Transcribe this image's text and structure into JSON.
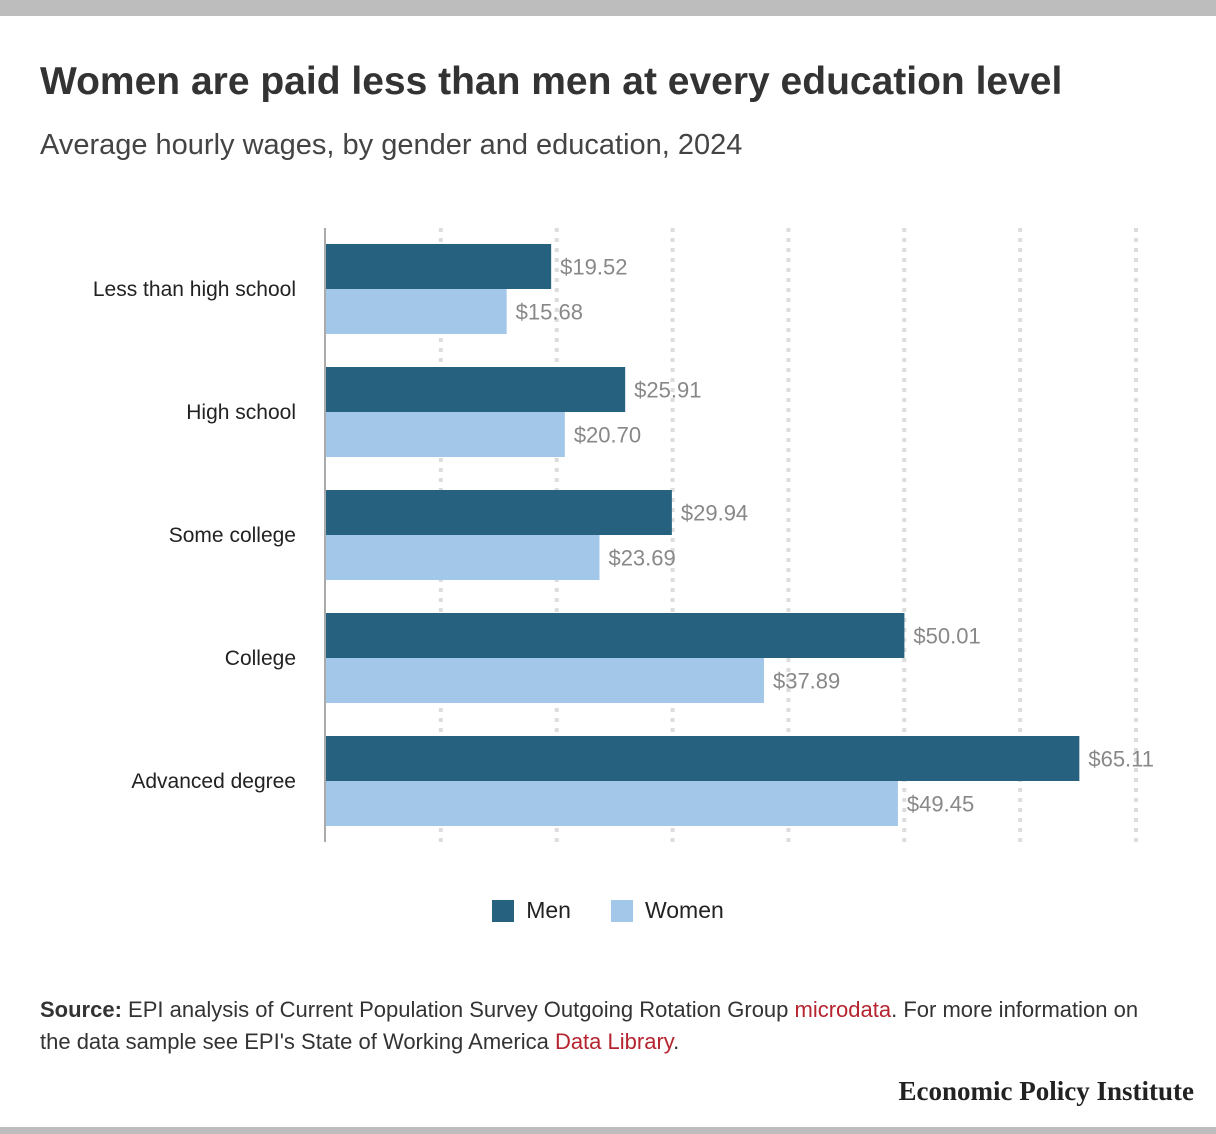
{
  "header": {
    "title": "Women are paid less than men at every education level",
    "subtitle": "Average hourly wages, by gender and education, 2024"
  },
  "chart_data": {
    "type": "bar",
    "orientation": "horizontal",
    "categories": [
      "Less than high school",
      "High school",
      "Some college",
      "College",
      "Advanced degree"
    ],
    "series": [
      {
        "name": "Men",
        "color": "#26627f",
        "values": [
          19.52,
          25.91,
          29.94,
          50.01,
          65.11
        ],
        "labels": [
          "$19.52",
          "$25.91",
          "$29.94",
          "$50.01",
          "$65.11"
        ]
      },
      {
        "name": "Women",
        "color": "#a2c7e8",
        "values": [
          15.68,
          20.7,
          23.69,
          37.89,
          49.45
        ],
        "labels": [
          "$15.68",
          "$20.70",
          "$23.69",
          "$37.89",
          "$49.45"
        ]
      }
    ],
    "xlim": [
      0,
      70
    ],
    "gridlines": "dotted-vertical",
    "legend_position": "bottom-center"
  },
  "legend": {
    "men": "Men",
    "women": "Women"
  },
  "source": {
    "label": "Source:",
    "text_1": " EPI analysis of Current Population Survey Outgoing Rotation Group ",
    "link_1": "microdata",
    "text_2": ". For more information on the data sample see EPI's State of Working America ",
    "link_2": "Data Library",
    "text_3": "."
  },
  "brand": "Economic Policy Institute"
}
